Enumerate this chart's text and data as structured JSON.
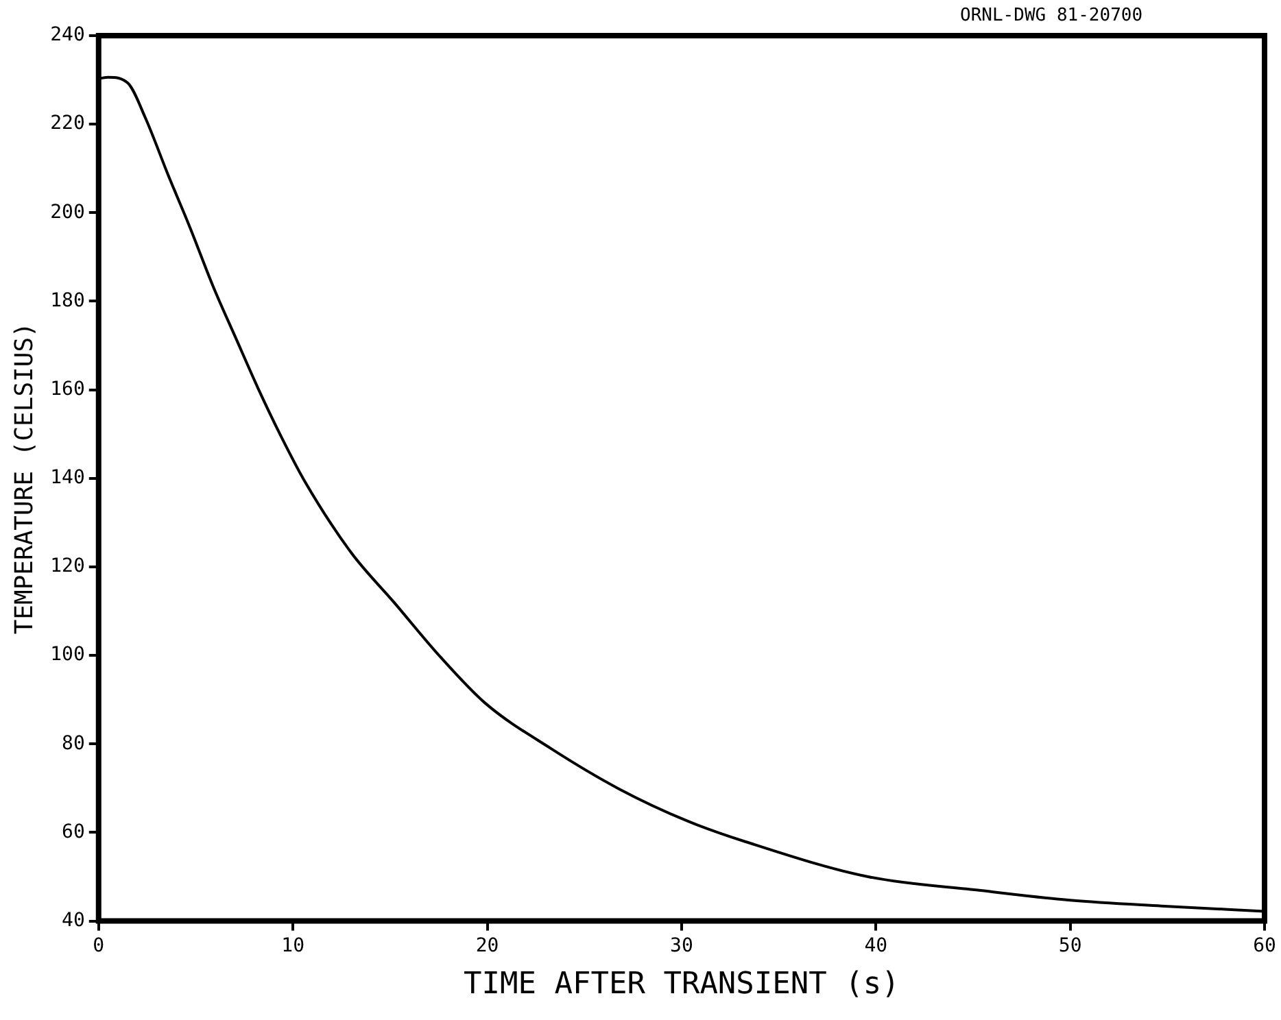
{
  "chart_data": {
    "type": "line",
    "xlabel": "TIME AFTER TRANSIENT (s)",
    "ylabel": "TEMPERATURE (CELSIUS)",
    "annotations": [
      "ORNL-DWG 81-20700"
    ],
    "xlim": [
      0,
      60
    ],
    "xticks": [
      0,
      10,
      20,
      30,
      40,
      50,
      60
    ],
    "ylim": [
      40,
      240
    ],
    "yticks": [
      40,
      60,
      80,
      100,
      120,
      140,
      160,
      180,
      200,
      220,
      240
    ],
    "grid": false,
    "legend": false,
    "marker": "none",
    "line_style": "solid",
    "series": [
      {
        "color": "#000000",
        "x": [
          0,
          0.5,
          1.5,
          2.4,
          3.6,
          4.7,
          5.9,
          7.1,
          8.2,
          9.4,
          10.6,
          13.0,
          15.2,
          17.6,
          19.9,
          23.3,
          26.8,
          30.3,
          33.3,
          39.6,
          45.4,
          50.0,
          54.7,
          60
        ],
        "values": [
          230.3,
          230.6,
          229.3,
          221.5,
          208.3,
          196.7,
          183.3,
          171.3,
          160.4,
          149.4,
          139.4,
          123.2,
          112.0,
          99.6,
          89.2,
          78.9,
          69.8,
          62.6,
          57.9,
          50.0,
          46.9,
          44.7,
          43.4,
          42.2
        ]
      }
    ]
  }
}
